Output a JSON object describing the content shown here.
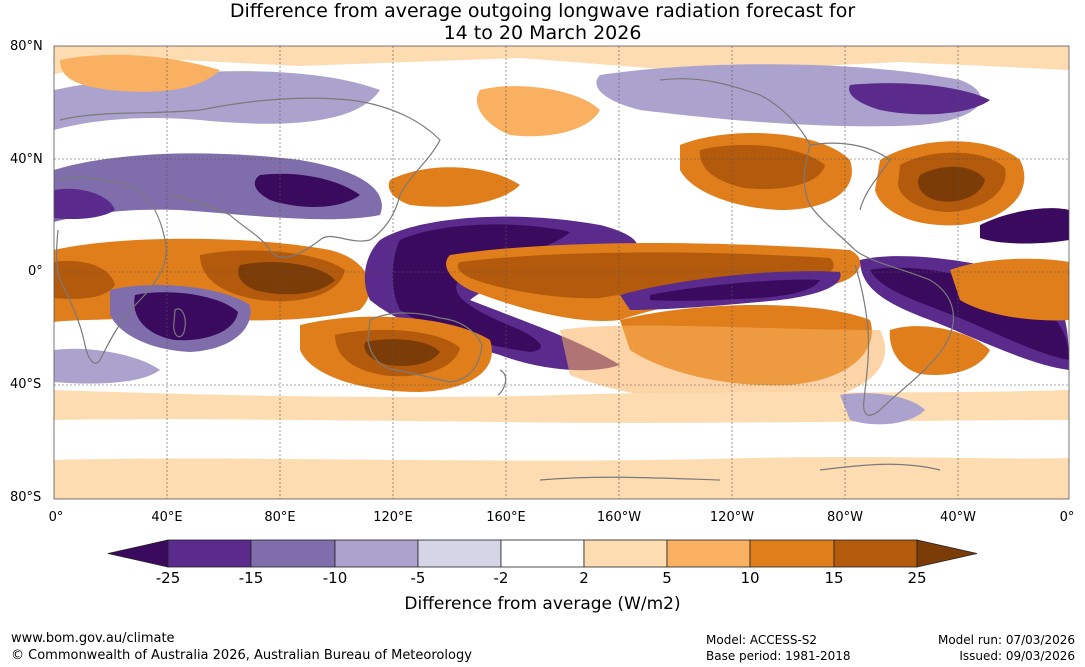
{
  "title": {
    "line1": "Difference from average outgoing longwave radiation forecast for",
    "line2": "14 to 20 March 2026"
  },
  "map": {
    "lat_labels": [
      "80°N",
      "40°N",
      "0°",
      "40°S",
      "80°S"
    ],
    "lon_labels": [
      "0°",
      "40°E",
      "80°E",
      "120°E",
      "160°E",
      "160°W",
      "120°W",
      "80°W",
      "40°W",
      "0°"
    ],
    "colors": {
      "neg25": "#3a0a5e",
      "neg15": "#5a2a8c",
      "neg10": "#7f6eab",
      "neg5": "#aba3cd",
      "neg2": "#d6d5e8",
      "zero": "#ffffff",
      "pos2": "#fddcb2",
      "pos5": "#f9b060",
      "pos10": "#e07e1c",
      "pos15": "#b45a0c",
      "pos25": "#7c3c08",
      "coast": "#7a7a7a"
    }
  },
  "colorbar": {
    "ticks": [
      "-25",
      "-15",
      "-10",
      "-5",
      "-2",
      "2",
      "5",
      "10",
      "15",
      "25"
    ],
    "title": "Difference from average (W/m2)"
  },
  "footer": {
    "website": "www.bom.gov.au/climate",
    "copyright": "© Commonwealth of Australia 2026, Australian Bureau of Meteorology",
    "model": "Model: ACCESS-S2",
    "base_period": "Base period: 1981-2018",
    "model_run": "Model run: 07/03/2026",
    "issued": "Issued: 09/03/2026"
  }
}
